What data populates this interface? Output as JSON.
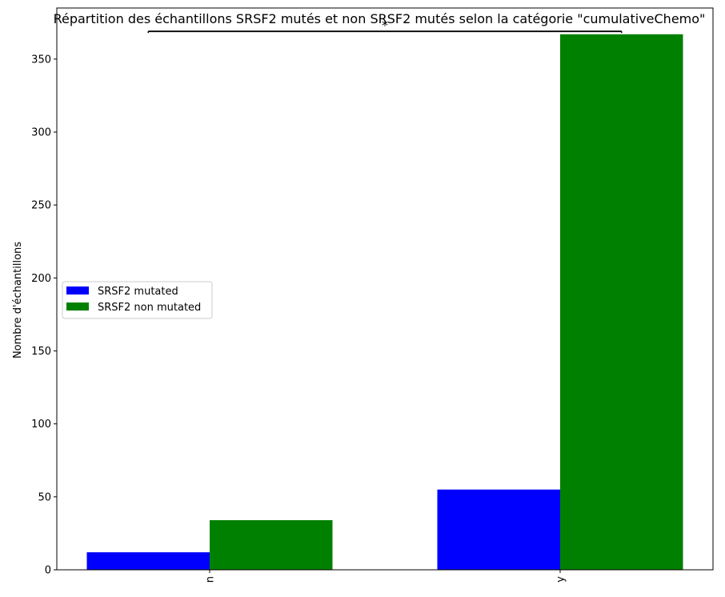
{
  "chart_data": {
    "type": "bar",
    "title": "Répartition des échantillons SRSF2 mutés et non SRSF2 mutés selon la catégorie \"cumulativeChemo\"",
    "xlabel": "",
    "ylabel": "Nombre d'échantillons",
    "categories": [
      "n",
      "y"
    ],
    "series": [
      {
        "name": "SRSF2 mutated",
        "values": [
          12,
          55
        ],
        "color": "#0000ff"
      },
      {
        "name": "SRSF2 non mutated",
        "values": [
          34,
          367
        ],
        "color": "#008000"
      }
    ],
    "ylim": [
      0,
      385
    ],
    "yticks": [
      0,
      50,
      100,
      150,
      200,
      250,
      300,
      350
    ],
    "grid": false,
    "legend_position": "center-left",
    "annotation": {
      "text": "*",
      "from_category": "n",
      "to_category": "y",
      "level": 369
    }
  }
}
